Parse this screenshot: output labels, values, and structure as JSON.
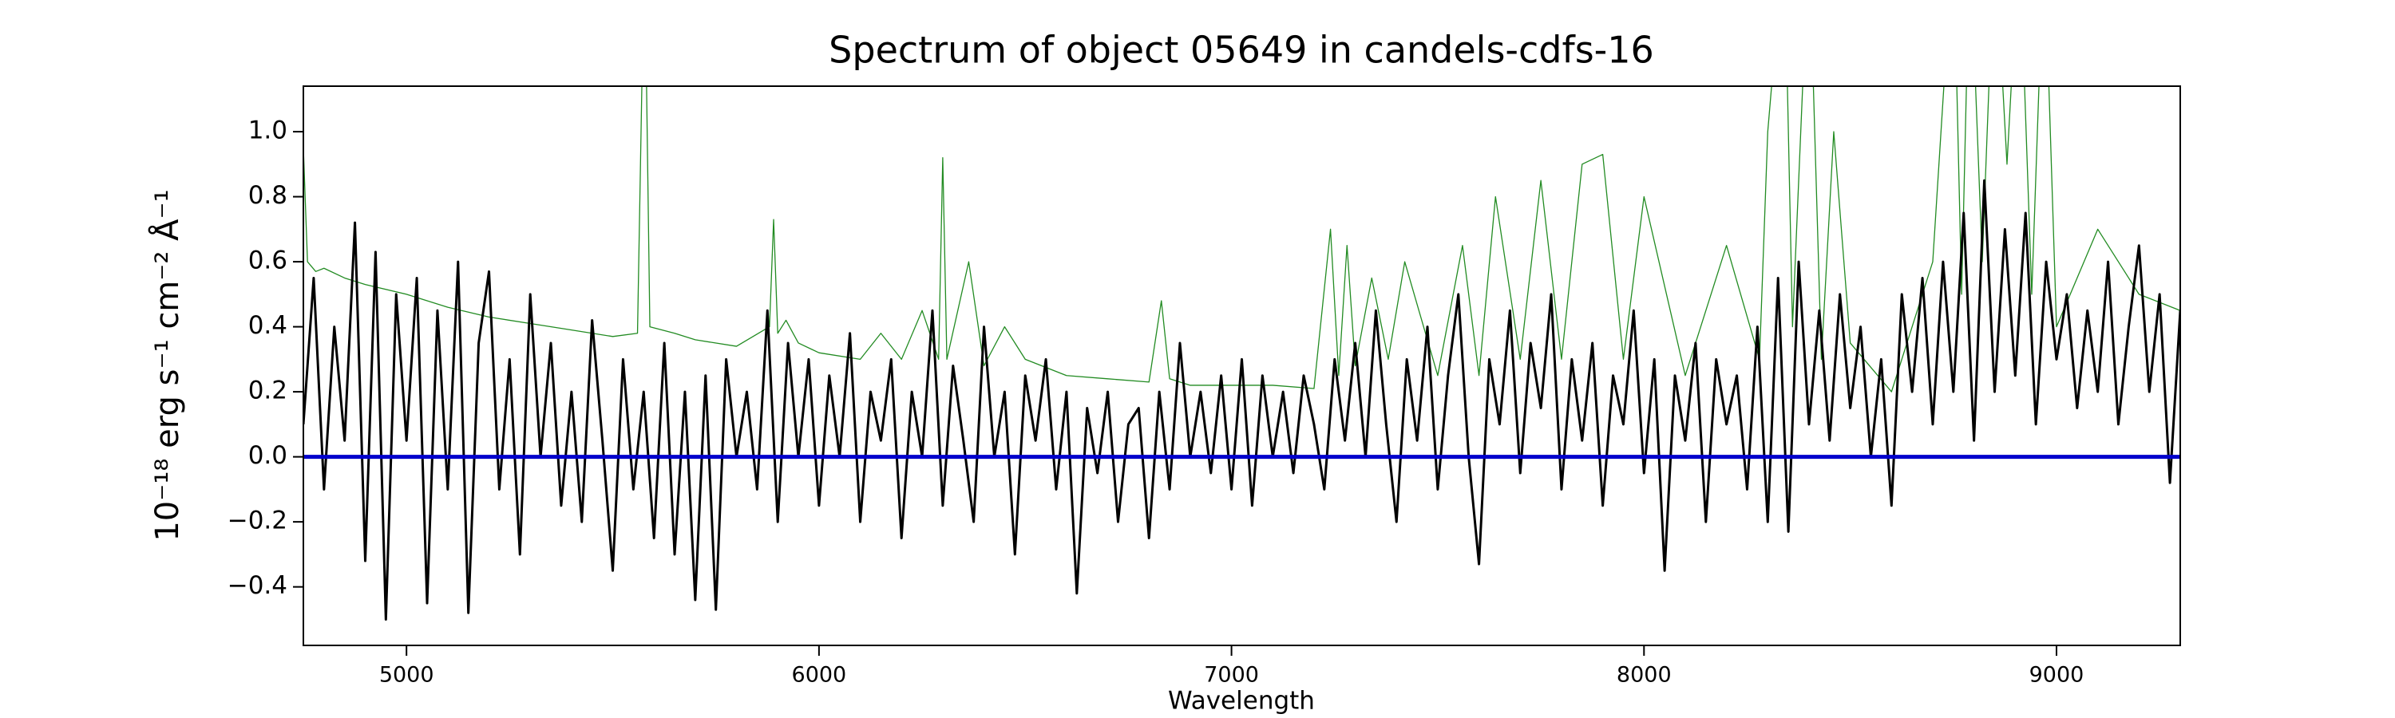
{
  "chart_data": {
    "type": "line",
    "title": "Spectrum of object 05649 in candels-cdfs-16",
    "x_label": "Wavelength",
    "y_label": "10⁻¹⁸ erg s⁻¹ cm⁻² Å⁻¹",
    "xlim": [
      4750,
      9300
    ],
    "ylim": [
      -0.58,
      1.14
    ],
    "xticks": [
      5000,
      6000,
      7000,
      8000,
      9000
    ],
    "yticks": [
      {
        "value": -0.4,
        "label": "−0.4"
      },
      {
        "value": -0.2,
        "label": "−0.2"
      },
      {
        "value": 0,
        "label": "0.0"
      },
      0.2,
      0.4,
      0.6,
      0.8,
      {
        "value": 1,
        "label": "1.0"
      }
    ],
    "hline": {
      "value": 0,
      "color": "#0000cc"
    },
    "series": [
      {
        "color": "#228b22",
        "linewidth": 1.3,
        "x": [
          4750,
          4760,
          4780,
          4800,
          4850,
          4900,
          5000,
          5100,
          5200,
          5300,
          5400,
          5500,
          5560,
          5577,
          5590,
          5650,
          5700,
          5800,
          5880,
          5890,
          5900,
          5920,
          5950,
          6000,
          6100,
          6150,
          6200,
          6250,
          6290,
          6300,
          6310,
          6363,
          6400,
          6450,
          6500,
          6600,
          6700,
          6800,
          6830,
          6850,
          6900,
          7000,
          7100,
          7200,
          7240,
          7260,
          7280,
          7300,
          7340,
          7380,
          7420,
          7500,
          7560,
          7600,
          7640,
          7700,
          7750,
          7800,
          7850,
          7900,
          7950,
          8000,
          8100,
          8200,
          8280,
          8300,
          8340,
          8360,
          8400,
          8430,
          8460,
          8500,
          8600,
          8700,
          8750,
          8770,
          8790,
          8820,
          8850,
          8880,
          8910,
          8940,
          8970,
          9000,
          9100,
          9200,
          9300
        ],
        "values": [
          0.95,
          0.6,
          0.57,
          0.58,
          0.55,
          0.53,
          0.5,
          0.46,
          0.43,
          0.41,
          0.39,
          0.37,
          0.38,
          1.6,
          0.4,
          0.38,
          0.36,
          0.34,
          0.4,
          0.73,
          0.38,
          0.42,
          0.35,
          0.32,
          0.3,
          0.38,
          0.3,
          0.45,
          0.3,
          0.92,
          0.3,
          0.6,
          0.28,
          0.4,
          0.3,
          0.25,
          0.24,
          0.23,
          0.48,
          0.24,
          0.22,
          0.22,
          0.22,
          0.21,
          0.7,
          0.25,
          0.65,
          0.28,
          0.55,
          0.3,
          0.6,
          0.25,
          0.65,
          0.25,
          0.8,
          0.3,
          0.85,
          0.3,
          0.9,
          0.93,
          0.3,
          0.8,
          0.25,
          0.65,
          0.3,
          1.0,
          1.6,
          0.4,
          1.6,
          0.3,
          1.0,
          0.35,
          0.2,
          0.6,
          1.6,
          0.5,
          1.6,
          0.6,
          1.6,
          0.9,
          1.6,
          0.5,
          1.6,
          0.4,
          0.7,
          0.5,
          0.45
        ]
      },
      {
        "color": "#000000",
        "linewidth": 3,
        "x": [
          4750,
          4775,
          4800,
          4825,
          4850,
          4875,
          4900,
          4925,
          4950,
          4975,
          5000,
          5025,
          5050,
          5075,
          5100,
          5125,
          5150,
          5175,
          5200,
          5225,
          5250,
          5275,
          5300,
          5325,
          5350,
          5375,
          5400,
          5425,
          5450,
          5475,
          5500,
          5525,
          5550,
          5575,
          5600,
          5625,
          5650,
          5675,
          5700,
          5725,
          5750,
          5775,
          5800,
          5825,
          5850,
          5875,
          5900,
          5925,
          5950,
          5975,
          6000,
          6025,
          6050,
          6075,
          6100,
          6125,
          6150,
          6175,
          6200,
          6225,
          6250,
          6275,
          6300,
          6325,
          6350,
          6375,
          6400,
          6425,
          6450,
          6475,
          6500,
          6525,
          6550,
          6575,
          6600,
          6625,
          6650,
          6675,
          6700,
          6725,
          6750,
          6775,
          6800,
          6825,
          6850,
          6875,
          6900,
          6925,
          6950,
          6975,
          7000,
          7025,
          7050,
          7075,
          7100,
          7125,
          7150,
          7175,
          7200,
          7225,
          7250,
          7275,
          7300,
          7325,
          7350,
          7375,
          7400,
          7425,
          7450,
          7475,
          7500,
          7525,
          7550,
          7575,
          7600,
          7625,
          7650,
          7675,
          7700,
          7725,
          7750,
          7775,
          7800,
          7825,
          7850,
          7875,
          7900,
          7925,
          7950,
          7975,
          8000,
          8025,
          8050,
          8075,
          8100,
          8125,
          8150,
          8175,
          8200,
          8225,
          8250,
          8275,
          8300,
          8325,
          8350,
          8375,
          8400,
          8425,
          8450,
          8475,
          8500,
          8525,
          8550,
          8575,
          8600,
          8625,
          8650,
          8675,
          8700,
          8725,
          8750,
          8775,
          8800,
          8825,
          8850,
          8875,
          8900,
          8925,
          8950,
          8975,
          9000,
          9025,
          9050,
          9075,
          9100,
          9125,
          9150,
          9175,
          9200,
          9225,
          9250,
          9275,
          9300
        ],
        "values": [
          0.1,
          0.55,
          -0.1,
          0.4,
          0.05,
          0.72,
          -0.32,
          0.63,
          -0.5,
          0.5,
          0.05,
          0.55,
          -0.45,
          0.45,
          -0.1,
          0.6,
          -0.48,
          0.35,
          0.57,
          -0.1,
          0.3,
          -0.3,
          0.5,
          0.0,
          0.35,
          -0.15,
          0.2,
          -0.2,
          0.42,
          0.05,
          -0.35,
          0.3,
          -0.1,
          0.2,
          -0.25,
          0.35,
          -0.3,
          0.2,
          -0.44,
          0.25,
          -0.47,
          0.3,
          0.0,
          0.2,
          -0.1,
          0.45,
          -0.2,
          0.35,
          0.0,
          0.3,
          -0.15,
          0.25,
          0.0,
          0.38,
          -0.2,
          0.2,
          0.05,
          0.3,
          -0.25,
          0.2,
          0.0,
          0.45,
          -0.15,
          0.28,
          0.05,
          -0.2,
          0.4,
          0.0,
          0.2,
          -0.3,
          0.25,
          0.05,
          0.3,
          -0.1,
          0.2,
          -0.42,
          0.15,
          -0.05,
          0.2,
          -0.2,
          0.1,
          0.15,
          -0.25,
          0.2,
          -0.1,
          0.35,
          0.0,
          0.2,
          -0.05,
          0.25,
          -0.1,
          0.3,
          -0.15,
          0.25,
          0.0,
          0.2,
          -0.05,
          0.25,
          0.1,
          -0.1,
          0.3,
          0.05,
          0.35,
          0.0,
          0.45,
          0.1,
          -0.2,
          0.3,
          0.05,
          0.4,
          -0.1,
          0.25,
          0.5,
          0.0,
          -0.33,
          0.3,
          0.1,
          0.45,
          -0.05,
          0.35,
          0.15,
          0.5,
          -0.1,
          0.3,
          0.05,
          0.35,
          -0.15,
          0.25,
          0.1,
          0.45,
          -0.05,
          0.3,
          -0.35,
          0.25,
          0.05,
          0.35,
          -0.2,
          0.3,
          0.1,
          0.25,
          -0.1,
          0.4,
          -0.2,
          0.55,
          -0.23,
          0.6,
          0.1,
          0.45,
          0.05,
          0.5,
          0.15,
          0.4,
          0.0,
          0.3,
          -0.15,
          0.5,
          0.2,
          0.55,
          0.1,
          0.6,
          0.2,
          0.75,
          0.05,
          0.85,
          0.2,
          0.7,
          0.25,
          0.75,
          0.1,
          0.6,
          0.3,
          0.5,
          0.15,
          0.45,
          0.2,
          0.6,
          0.1,
          0.4,
          0.65,
          0.2,
          0.5,
          -0.08,
          0.45
        ]
      }
    ]
  }
}
